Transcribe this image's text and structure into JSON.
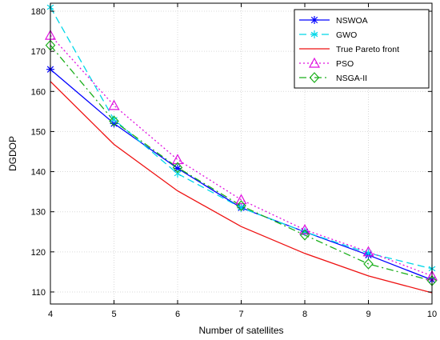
{
  "chart_data": {
    "type": "line",
    "title": "",
    "xlabel": "Number of satellites",
    "ylabel": "DGDOP",
    "xlim": [
      4,
      10
    ],
    "ylim": [
      107,
      182
    ],
    "xticks": [
      4,
      5,
      6,
      7,
      8,
      9,
      10
    ],
    "yticks": [
      110,
      120,
      130,
      140,
      150,
      160,
      170,
      180
    ],
    "grid": true,
    "legend_position": "top-right",
    "x": [
      4,
      5,
      6,
      7,
      8,
      9,
      10
    ],
    "series": [
      {
        "name": "NSWOA",
        "values": [
          165.5,
          152,
          140.8,
          131,
          125,
          119.2,
          113
        ],
        "color": "#0000ff",
        "dash": "solid",
        "marker": "asterisk"
      },
      {
        "name": "GWO",
        "values": [
          181,
          153,
          139.5,
          131,
          125,
          119.7,
          115.8
        ],
        "color": "#00d7e8",
        "dash": "dashed",
        "marker": "star"
      },
      {
        "name": "True Pareto front",
        "values": [
          162.5,
          146.8,
          135.2,
          126.3,
          119.6,
          114,
          109.8
        ],
        "color": "#ee1111",
        "dash": "solid",
        "marker": "none"
      },
      {
        "name": "PSO",
        "values": [
          174,
          156.5,
          143,
          133,
          125.5,
          120,
          114
        ],
        "color": "#e010e0",
        "dash": "dotted",
        "marker": "triangle"
      },
      {
        "name": "NSGA-II",
        "values": [
          171.5,
          152.6,
          141,
          131.5,
          124.2,
          117,
          112.8
        ],
        "color": "#1aaf1a",
        "dash": "dashdot",
        "marker": "diamond"
      }
    ]
  }
}
